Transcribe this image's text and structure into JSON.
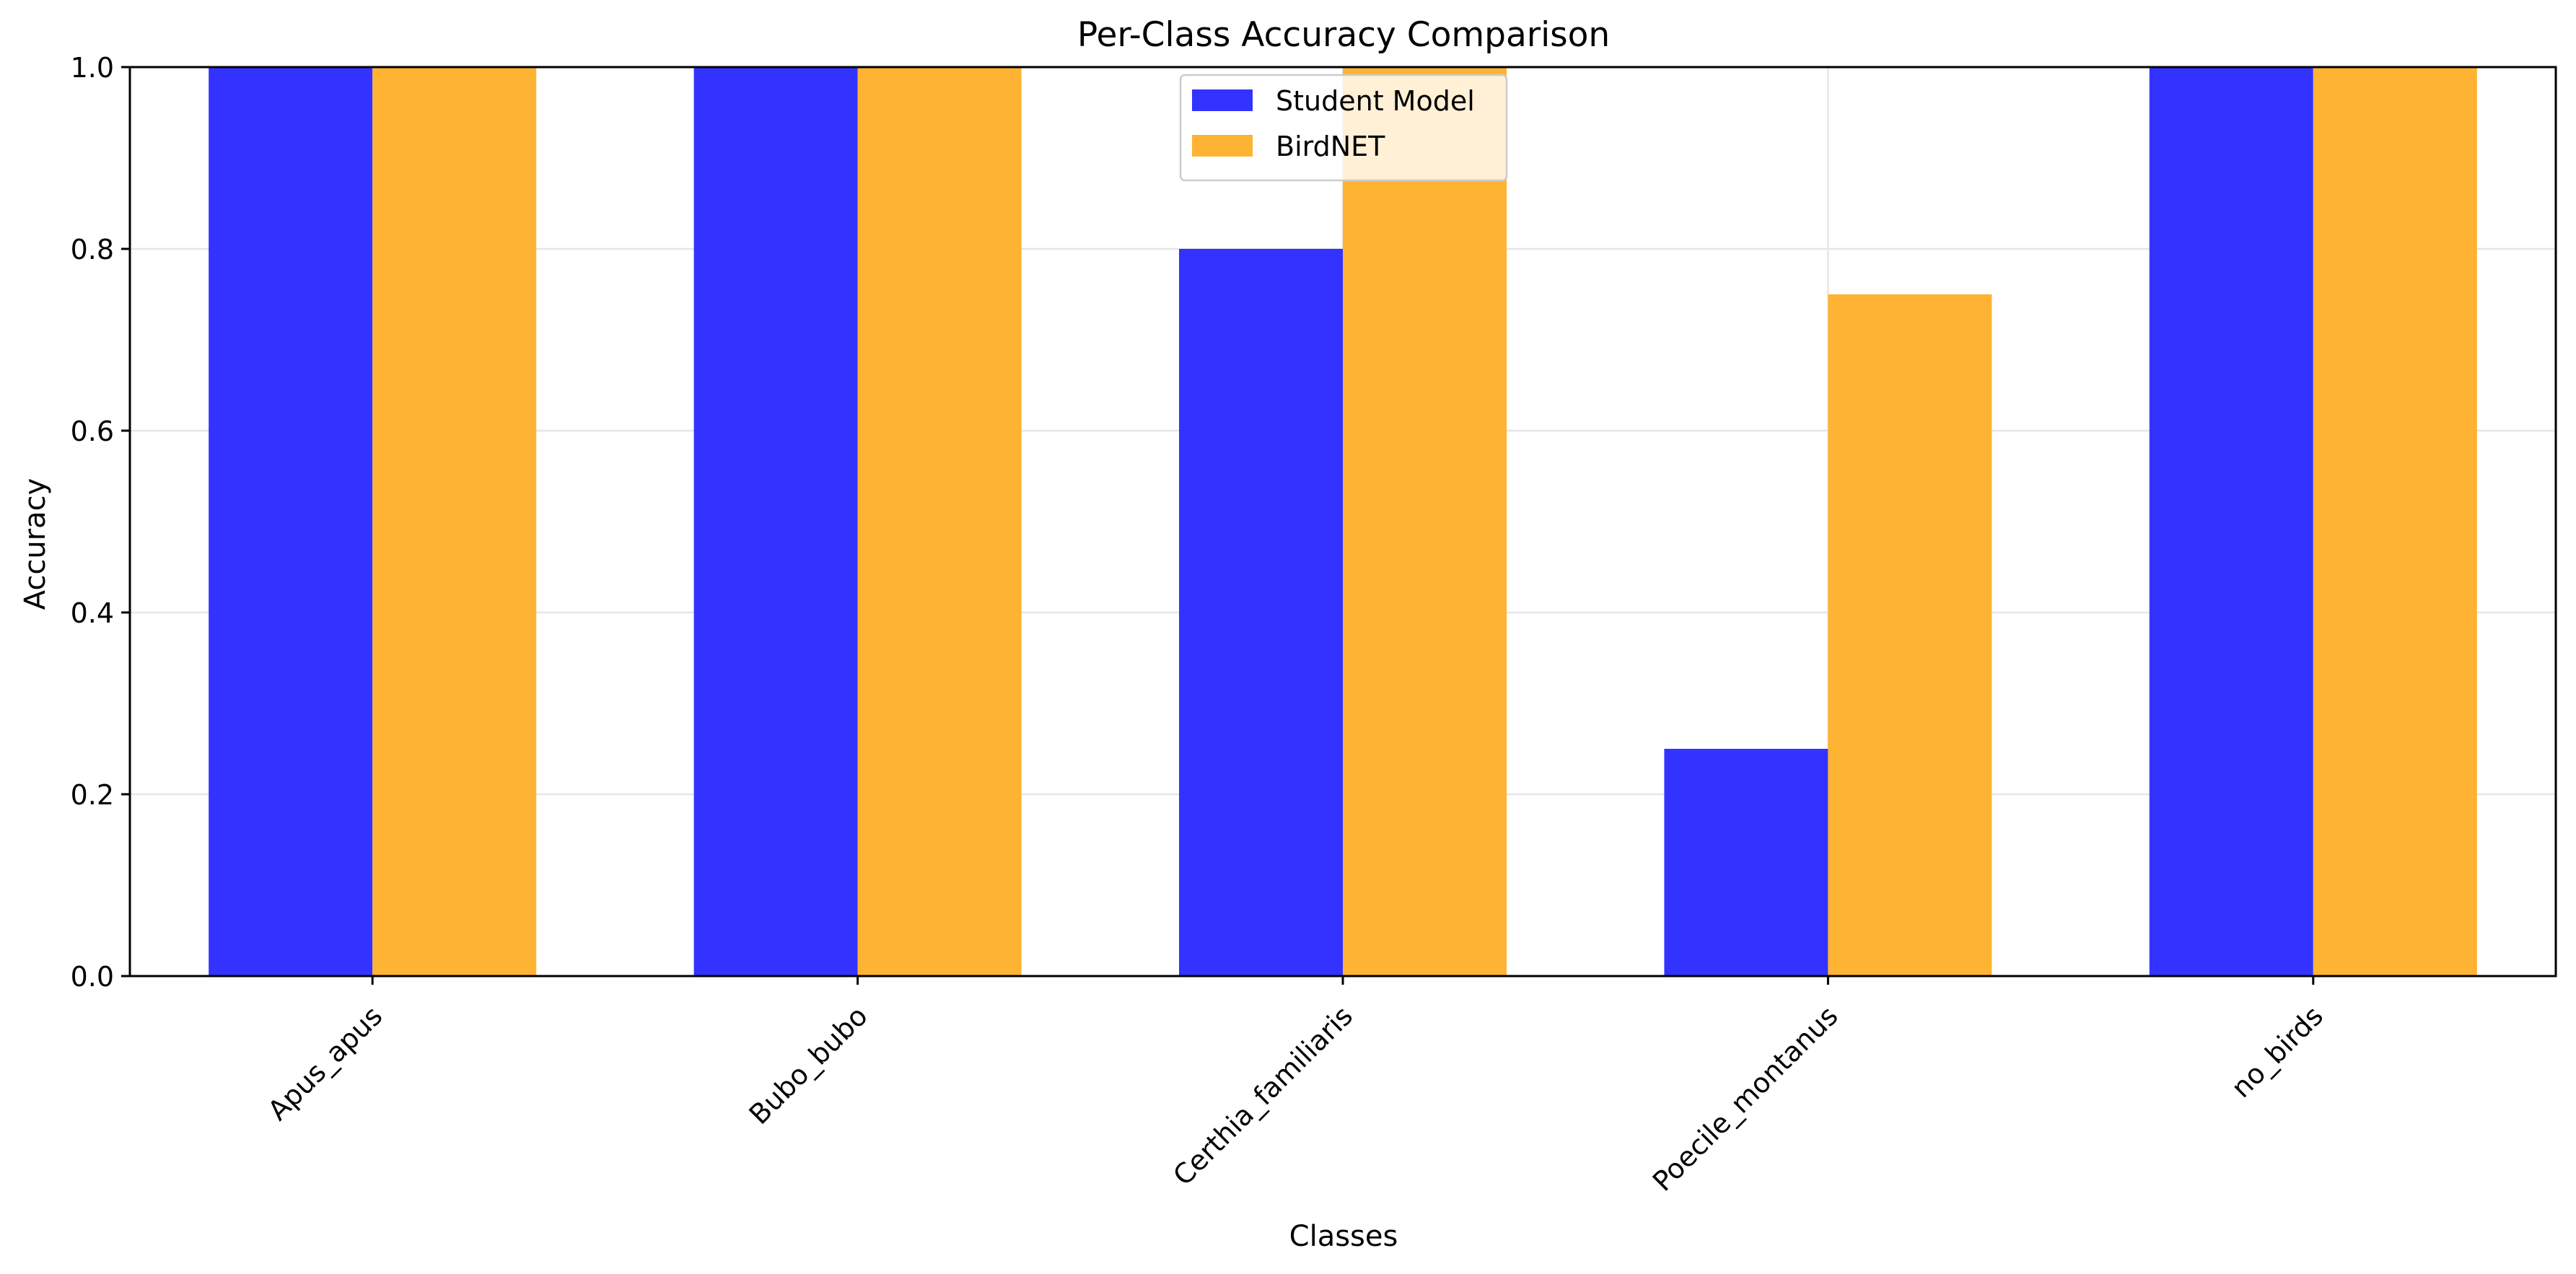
{
  "chart_data": {
    "type": "bar",
    "title": "Per-Class Accuracy Comparison",
    "xlabel": "Classes",
    "ylabel": "Accuracy",
    "ylim": [
      0,
      1.0
    ],
    "yticks": [
      0.0,
      0.2,
      0.4,
      0.6,
      0.8,
      1.0
    ],
    "ytick_labels": [
      "0.0",
      "0.2",
      "0.4",
      "0.6",
      "0.8",
      "1.0"
    ],
    "grid": true,
    "legend_position": "top-center",
    "categories": [
      "Apus_apus",
      "Bubo_bubo",
      "Certhia_familiaris",
      "Poecile_montanus",
      "no_birds"
    ],
    "series": [
      {
        "name": "Student Model",
        "color": "#3333ff",
        "values": [
          1.0,
          1.0,
          0.8,
          0.25,
          1.0
        ]
      },
      {
        "name": "BirdNET",
        "color": "#ffb333",
        "values": [
          1.0,
          1.0,
          1.0,
          0.75,
          1.0
        ]
      }
    ]
  }
}
